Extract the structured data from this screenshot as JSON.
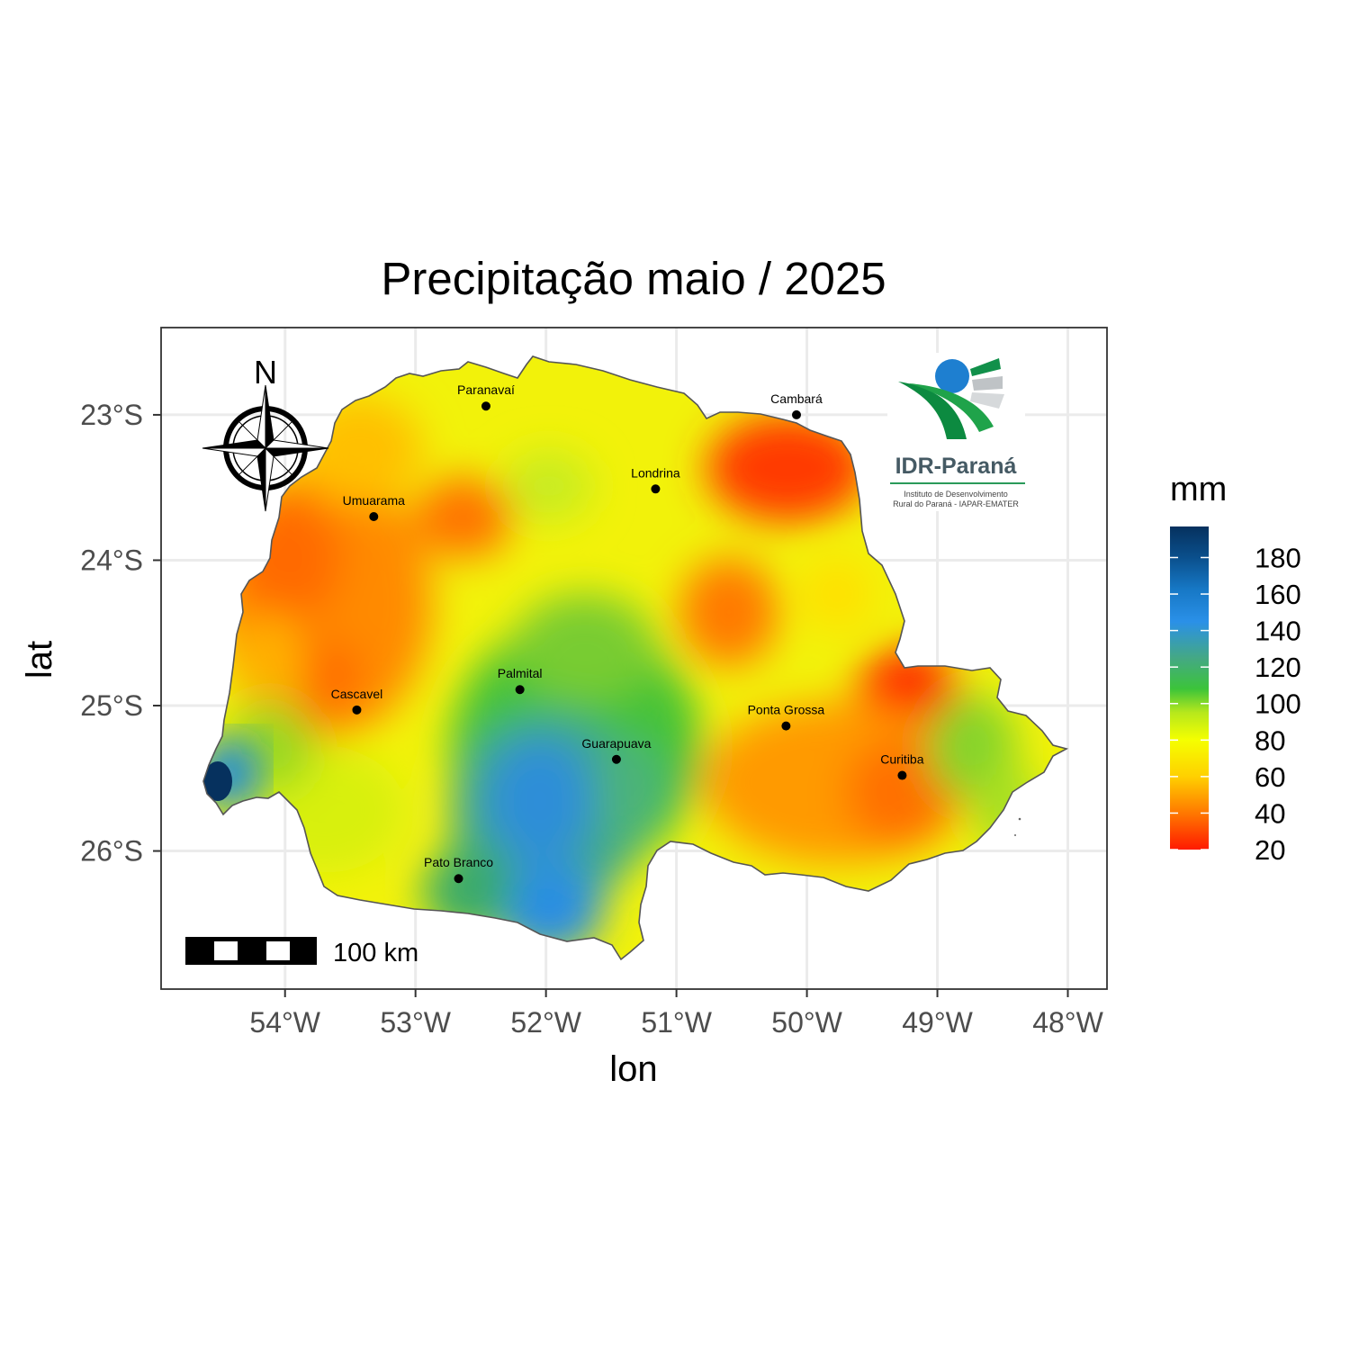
{
  "title": "Precipitação maio / 2025",
  "axes": {
    "xlabel": "lon",
    "ylabel": "lat",
    "x_ticks": [
      "54°W",
      "53°W",
      "52°W",
      "51°W",
      "50°W",
      "49°W",
      "48°W"
    ],
    "y_ticks": [
      "23°S",
      "24°S",
      "25°S",
      "26°S"
    ],
    "x_tick_values": [
      -54,
      -53,
      -52,
      -51,
      -50,
      -49,
      -48
    ],
    "y_tick_values": [
      -23,
      -24,
      -25,
      -26
    ],
    "xlim": [
      -54.95,
      -47.7
    ],
    "ylim": [
      -26.95,
      -22.4
    ],
    "grid": true
  },
  "north_arrow": {
    "label": "N"
  },
  "scale_bar": {
    "label": "100 km"
  },
  "logo": {
    "name": "IDR-Paraná",
    "subtitle_line1": "Instituto de Desenvolvimento",
    "subtitle_line2": "Rural do Paraná - IAPAR-EMATER"
  },
  "legend": {
    "title": "mm",
    "ticks": [
      "180",
      "160",
      "140",
      "120",
      "100",
      "80",
      "60",
      "40",
      "20"
    ],
    "tick_values": [
      180,
      160,
      140,
      120,
      100,
      80,
      60,
      40,
      20
    ],
    "range": [
      20,
      197
    ],
    "colors": [
      "#ff1a00",
      "#ff7800",
      "#ffd000",
      "#f5ff00",
      "#b7e81c",
      "#3cc43a",
      "#44a884",
      "#2a90e8",
      "#1677c4",
      "#0a4f8c",
      "#06315e"
    ],
    "color_stops": [
      20,
      40,
      60,
      80,
      95,
      108,
      125,
      145,
      163,
      180,
      197
    ]
  },
  "cities": [
    {
      "name": "Paranavaí",
      "lon": -52.46,
      "lat": -22.94
    },
    {
      "name": "Cambará",
      "lon": -50.08,
      "lat": -23.0
    },
    {
      "name": "Londrina",
      "lon": -51.16,
      "lat": -23.51
    },
    {
      "name": "Umuarama",
      "lon": -53.32,
      "lat": -23.7
    },
    {
      "name": "Palmital",
      "lon": -52.2,
      "lat": -24.89
    },
    {
      "name": "Cascavel",
      "lon": -53.45,
      "lat": -25.03
    },
    {
      "name": "Ponta Grossa",
      "lon": -50.16,
      "lat": -25.14
    },
    {
      "name": "Guarapuava",
      "lon": -51.46,
      "lat": -25.37
    },
    {
      "name": "Curitiba",
      "lon": -49.27,
      "lat": -25.48
    },
    {
      "name": "Pato Branco",
      "lon": -52.67,
      "lat": -26.19
    }
  ]
}
